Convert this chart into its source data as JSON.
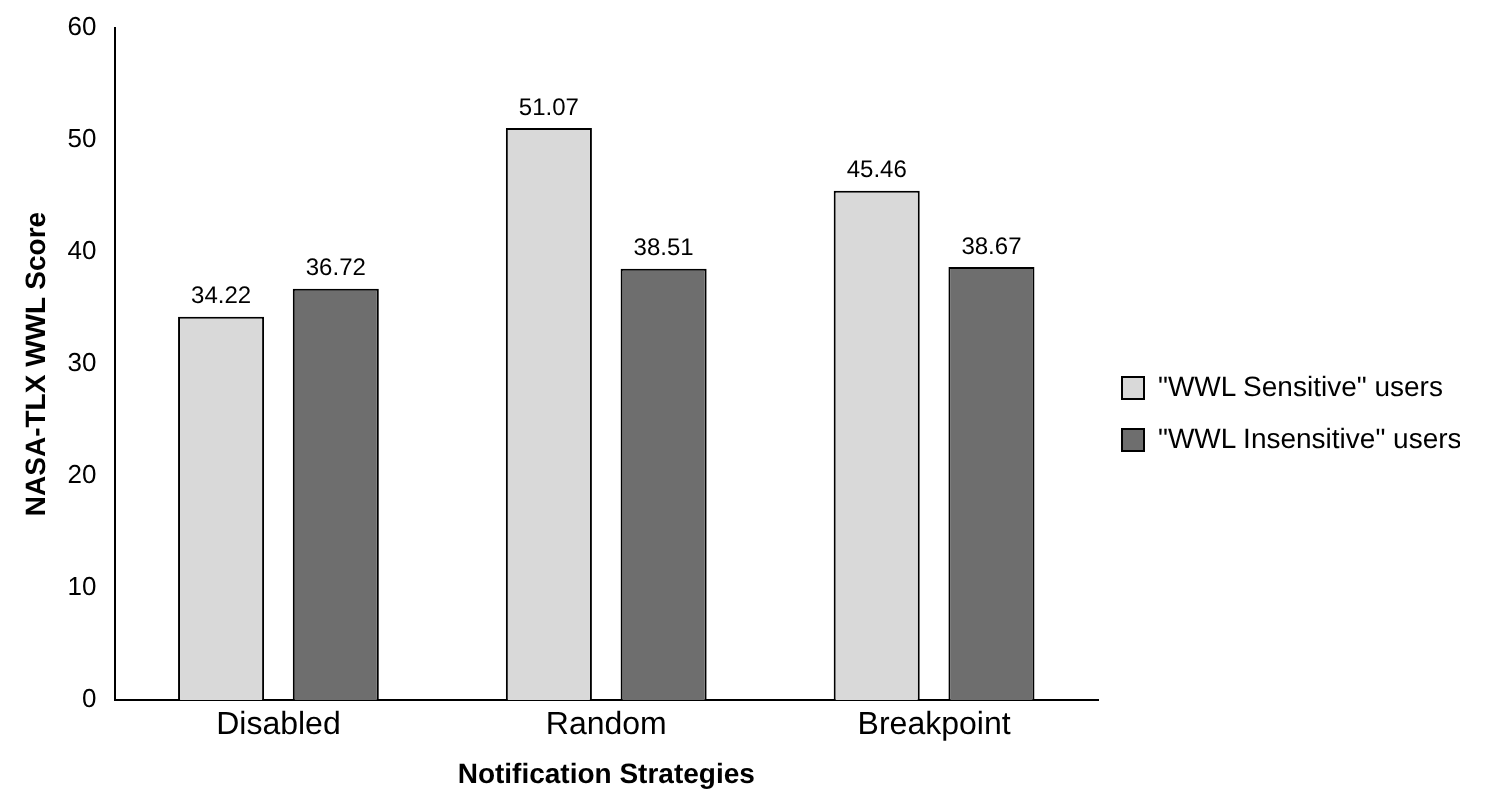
{
  "chart_data": {
    "type": "bar",
    "xlabel": "Notification Strategies",
    "ylabel": "NASA-TLX WWL Score",
    "categories": [
      "Disabled",
      "Random",
      "Breakpoint"
    ],
    "series": [
      {
        "name": "\"WWL Sensitive\" users",
        "color": "#d9d9d9",
        "values": [
          34.22,
          51.07,
          45.46
        ]
      },
      {
        "name": "\"WWL Insensitive\" users",
        "color": "#6e6e6e",
        "values": [
          36.72,
          38.51,
          38.67
        ]
      }
    ],
    "ylim": [
      0,
      60
    ],
    "yticks": [
      0,
      10,
      20,
      30,
      40,
      50,
      60
    ],
    "grid": false,
    "legend": "right",
    "data_labels": true
  }
}
